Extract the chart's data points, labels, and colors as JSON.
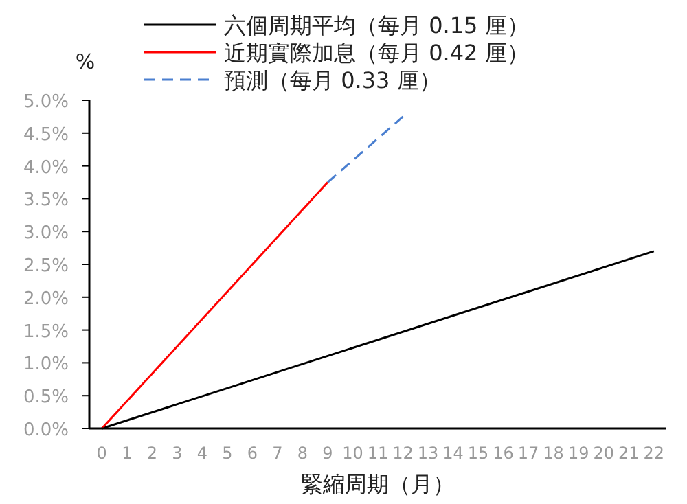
{
  "chart_data": {
    "type": "line",
    "xlabel": "緊縮周期（月）",
    "ylabel": "%",
    "xlim": [
      -0.5,
      22.5
    ],
    "xticks": [
      0,
      1,
      2,
      3,
      4,
      5,
      6,
      7,
      8,
      9,
      10,
      11,
      12,
      13,
      14,
      15,
      16,
      17,
      18,
      19,
      20,
      21,
      22
    ],
    "ylim": [
      0,
      5
    ],
    "yticks": [
      {
        "value": 0,
        "label": "0.0%"
      },
      {
        "value": 0.5,
        "label": "0.5%"
      },
      {
        "value": 1,
        "label": "1.0%"
      },
      {
        "value": 1.5,
        "label": "1.5%"
      },
      {
        "value": 2,
        "label": "2.0%"
      },
      {
        "value": 2.5,
        "label": "2.5%"
      },
      {
        "value": 3,
        "label": "3.0%"
      },
      {
        "value": 3.5,
        "label": "3.5%"
      },
      {
        "value": 4,
        "label": "4.0%"
      },
      {
        "value": 4.5,
        "label": "4.5%"
      },
      {
        "value": 5,
        "label": "5.0%"
      }
    ],
    "legend": "top",
    "grid": false,
    "series": [
      {
        "name": "六個周期平均（每月 0.15 厘）",
        "color": "#000000",
        "line_style": "solid",
        "x": [
          0,
          22
        ],
        "values": [
          0,
          2.7
        ]
      },
      {
        "name": "近期實際加息（每月 0.42 厘）",
        "color": "#ff0000",
        "line_style": "solid",
        "x": [
          0,
          9
        ],
        "values": [
          0,
          3.75
        ]
      },
      {
        "name": "預測（每月 0.33 厘）",
        "color": "#4a7fd0",
        "line_style": "dashed",
        "x": [
          9,
          12
        ],
        "values": [
          3.75,
          4.75
        ]
      }
    ]
  }
}
